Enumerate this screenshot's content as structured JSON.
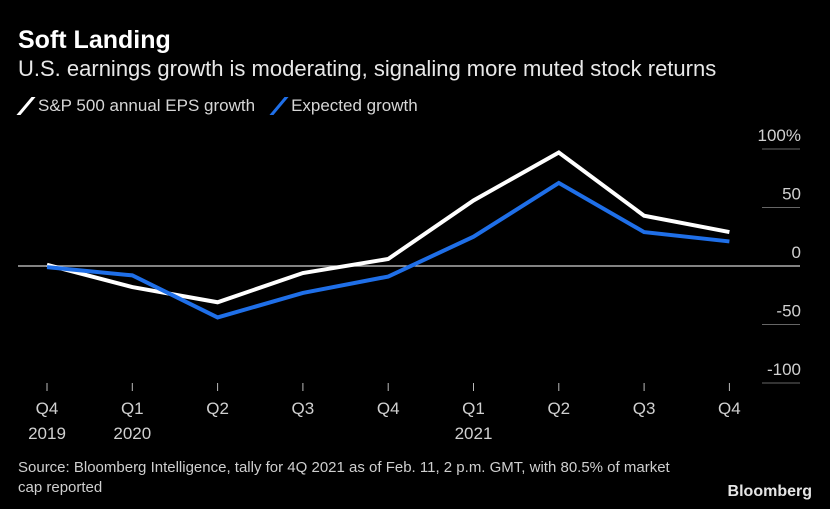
{
  "chart_data": {
    "type": "line",
    "title": "Soft Landing",
    "subtitle": "U.S. earnings growth is moderating, signaling more muted stock returns",
    "categories": [
      {
        "q": "Q4",
        "year": "2019"
      },
      {
        "q": "Q1",
        "year": "2020"
      },
      {
        "q": "Q2",
        "year": ""
      },
      {
        "q": "Q3",
        "year": ""
      },
      {
        "q": "Q4",
        "year": ""
      },
      {
        "q": "Q1",
        "year": "2021"
      },
      {
        "q": "Q2",
        "year": ""
      },
      {
        "q": "Q3",
        "year": ""
      },
      {
        "q": "Q4",
        "year": ""
      }
    ],
    "series": [
      {
        "name": "S&P 500 annual EPS growth",
        "color": "#ffffff",
        "values": [
          1,
          -18,
          -31,
          -6,
          6,
          56,
          97,
          43,
          29
        ]
      },
      {
        "name": "Expected growth",
        "color": "#1f6fe8",
        "values": [
          -1,
          -8,
          -44,
          -23,
          -9,
          25,
          71,
          29,
          21
        ]
      }
    ],
    "y_ticks": [
      {
        "value": 100,
        "label": "100%"
      },
      {
        "value": 50,
        "label": "50"
      },
      {
        "value": 0,
        "label": "0"
      },
      {
        "value": -50,
        "label": "-50"
      },
      {
        "value": -100,
        "label": "-100"
      }
    ],
    "ylim": [
      -100,
      100
    ],
    "zero_line": true,
    "legend_position": "top-left"
  },
  "source_text": "Source: Bloomberg Intelligence, tally for 4Q 2021 as of Feb. 11, 2 p.m. GMT, with 80.5% of market cap reported",
  "brand": "Bloomberg"
}
